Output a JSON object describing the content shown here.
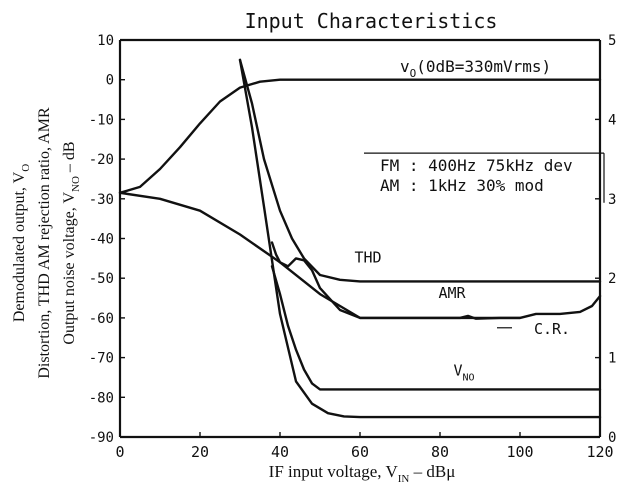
{
  "chart_data": {
    "type": "line",
    "title": "Input Characteristics",
    "xlabel": "IF input voltage, V",
    "xlabel_sub": "IN",
    "xlabel_unit": "  –  dBμ",
    "ylabel_lines": [
      {
        "text": "Demodulated output, V",
        "sub": "O",
        "tail": ""
      },
      {
        "text": "Distortion, THD  AM rejection ratio, AMR",
        "sub": "",
        "tail": ""
      },
      {
        "text": "Output noise voltage, V",
        "sub": "NO",
        "tail": "  –  dB"
      }
    ],
    "xlim": [
      0,
      120
    ],
    "ylim": [
      -90,
      10
    ],
    "y2lim": [
      0,
      5
    ],
    "x_ticks": [
      0,
      20,
      40,
      60,
      80,
      100,
      120
    ],
    "y_ticks": [
      10,
      0,
      -10,
      -20,
      -30,
      -40,
      -50,
      -60,
      -70,
      -80,
      -90
    ],
    "y2_ticks": [
      0,
      1,
      2,
      3,
      4,
      5
    ],
    "grid": false,
    "annotations": [
      {
        "text": "v",
        "sub": "O",
        "tail": "(0dB=330mVrms)",
        "x": 70,
        "y": 2
      },
      {
        "text": "FM : 400Hz 75kHz dev",
        "x": 65,
        "y": -23
      },
      {
        "text": "AM : 1kHz 30% mod",
        "x": 65,
        "y": -28
      }
    ],
    "series": [
      {
        "name": "V",
        "name_sub": "O",
        "axis": "left",
        "x": [
          0,
          5,
          10,
          15,
          20,
          25,
          30,
          35,
          40,
          50,
          60,
          80,
          100,
          120
        ],
        "y": [
          -28.5,
          -27,
          -22.5,
          -17,
          -11,
          -5.5,
          -2,
          -0.5,
          0,
          0,
          0,
          0,
          0,
          0
        ]
      },
      {
        "name": "AMR",
        "axis": "left",
        "label_at": [
          83,
          -55
        ],
        "x": [
          0,
          10,
          20,
          30,
          40,
          50,
          60,
          70,
          80,
          90,
          100
        ],
        "y": [
          -28.5,
          -30,
          -33,
          -39,
          -46,
          -54,
          -60,
          -60,
          -60,
          -60,
          -60
        ]
      },
      {
        "name": "AMR",
        "axis": "left",
        "x": [
          38,
          39,
          40,
          42,
          44,
          46,
          48,
          50,
          55,
          60,
          70,
          80,
          85,
          87,
          89,
          95,
          100,
          102,
          104,
          110,
          115,
          118,
          120
        ],
        "y": [
          -41,
          -44,
          -46,
          -47,
          -45,
          -45.5,
          -48,
          -52.5,
          -58,
          -60,
          -60,
          -60,
          -60,
          -59.5,
          -60.2,
          -60,
          -60,
          -59.5,
          -59,
          -59,
          -58.5,
          -57,
          -54.5
        ]
      },
      {
        "name": "THD",
        "axis": "right",
        "label_at": [
          62,
          2.2
        ],
        "x": [
          30,
          33,
          36,
          40,
          43,
          46,
          50,
          55,
          60,
          80,
          100,
          120
        ],
        "y": [
          4.75,
          4.2,
          3.5,
          2.85,
          2.5,
          2.25,
          2.04,
          1.98,
          1.96,
          1.96,
          1.96,
          1.96
        ]
      },
      {
        "name": "V",
        "name_sub": "NO",
        "axis": "left",
        "label_at": [
          86,
          -74.5
        ],
        "x": [
          38,
          40,
          42,
          44,
          46,
          48,
          50,
          55,
          60,
          80,
          100,
          120
        ],
        "y": [
          -47,
          -54,
          -62,
          -68,
          -73,
          -76.5,
          -78,
          -78,
          -78,
          -78,
          -78,
          -78
        ]
      },
      {
        "name": "C.R.",
        "axis": "right",
        "label_at": [
          108,
          1.3
        ],
        "x": [
          30,
          33,
          36,
          40,
          44,
          48,
          52,
          56,
          60,
          80,
          100,
          120
        ],
        "y": [
          4.75,
          3.9,
          2.9,
          1.55,
          0.7,
          0.42,
          0.3,
          0.26,
          0.25,
          0.25,
          0.25,
          0.25
        ]
      }
    ]
  }
}
